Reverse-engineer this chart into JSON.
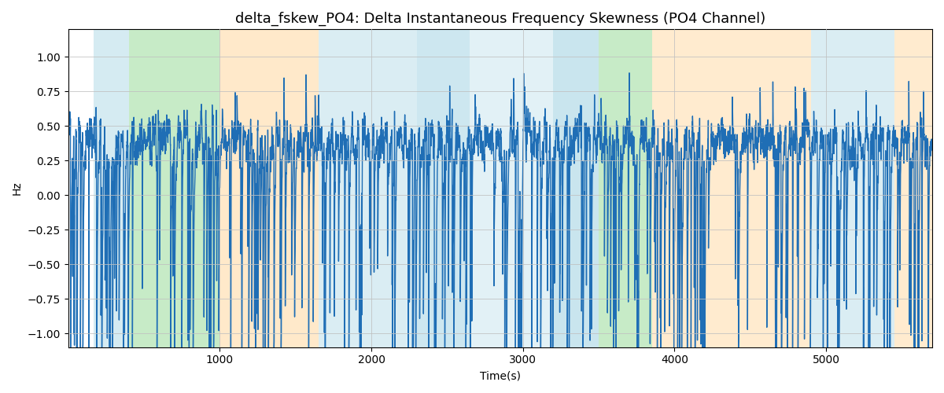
{
  "title": "delta_fskew_PO4: Delta Instantaneous Frequency Skewness (PO4 Channel)",
  "xlabel": "Time(s)",
  "ylabel": "Hz",
  "xlim": [
    0,
    5700
  ],
  "ylim": [
    -1.1,
    1.2
  ],
  "line_color": "#1f6eb5",
  "line_width": 1.0,
  "background_color": "#ffffff",
  "seed": 42,
  "n_points": 5700,
  "bands": [
    {
      "xmin": 170,
      "xmax": 400,
      "color": "#add8e6",
      "alpha": 0.5
    },
    {
      "xmin": 400,
      "xmax": 1000,
      "color": "#90d890",
      "alpha": 0.5
    },
    {
      "xmin": 1000,
      "xmax": 1650,
      "color": "#ffd8a0",
      "alpha": 0.55
    },
    {
      "xmin": 1650,
      "xmax": 2300,
      "color": "#add8e6",
      "alpha": 0.45
    },
    {
      "xmin": 2300,
      "xmax": 2650,
      "color": "#add8e6",
      "alpha": 0.6
    },
    {
      "xmin": 2650,
      "xmax": 3200,
      "color": "#add8e6",
      "alpha": 0.35
    },
    {
      "xmin": 3200,
      "xmax": 3500,
      "color": "#add8e6",
      "alpha": 0.65
    },
    {
      "xmin": 3500,
      "xmax": 3850,
      "color": "#90d890",
      "alpha": 0.5
    },
    {
      "xmin": 3850,
      "xmax": 4900,
      "color": "#ffd8a0",
      "alpha": 0.5
    },
    {
      "xmin": 4900,
      "xmax": 5450,
      "color": "#add8e6",
      "alpha": 0.45
    },
    {
      "xmin": 5450,
      "xmax": 5700,
      "color": "#ffd8a0",
      "alpha": 0.5
    }
  ],
  "yticks": [
    -1.0,
    -0.75,
    -0.5,
    -0.25,
    0.0,
    0.25,
    0.5,
    0.75,
    1.0
  ],
  "xticks": [
    1000,
    2000,
    3000,
    4000,
    5000
  ],
  "grid_color": "#c0c0c0",
  "grid_alpha": 0.8,
  "title_fontsize": 13
}
